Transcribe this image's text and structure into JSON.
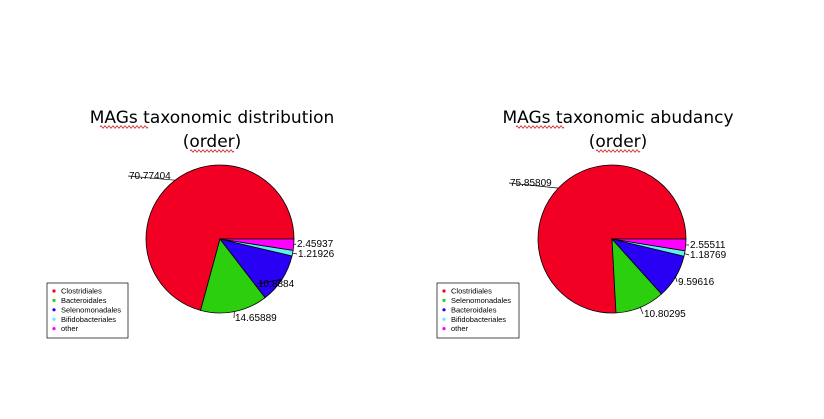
{
  "chart_data": [
    {
      "type": "pie",
      "title_line1": "MAGs taxonomic distribution",
      "title_line2": "(order)",
      "slices": [
        {
          "label": "Clostridiales",
          "value": 70.77404,
          "value_label": "70.77404",
          "color": "#f20024"
        },
        {
          "label": "Bacteroidales",
          "value": 14.65889,
          "value_label": "14.65889",
          "color": "#2ccf0e"
        },
        {
          "label": "Selenomonadales",
          "value": 10.8884,
          "value_label": "10.8884",
          "color": "#2a00f5"
        },
        {
          "label": "Bifidobacteriales",
          "value": 1.21926,
          "value_label": "1.21926",
          "color": "#5ef0f0"
        },
        {
          "label": "other",
          "value": 2.45937,
          "value_label": "2.45937",
          "color": "#ff00ff"
        }
      ],
      "legend": [
        "Clostridiales",
        "Bacteroidales",
        "Selenomonadales",
        "Bifidobacteriales",
        "other"
      ],
      "legend_placement": "bottom-left"
    },
    {
      "type": "pie",
      "title_line1": "MAGs taxonomic abudancy",
      "title_line2": "(order)",
      "slices": [
        {
          "label": "Clostridiales",
          "value": 75.85809,
          "value_label": "75.85809",
          "color": "#f20024"
        },
        {
          "label": "Selenomonadales",
          "value": 10.80295,
          "value_label": "10.80295",
          "color": "#2ccf0e"
        },
        {
          "label": "Bacteroidales",
          "value": 9.59616,
          "value_label": "9.59616",
          "color": "#2a00f5"
        },
        {
          "label": "Bifidobacteriales",
          "value": 1.18769,
          "value_label": "1.18769",
          "color": "#5ef0f0"
        },
        {
          "label": "other",
          "value": 2.55511,
          "value_label": "2.55511",
          "color": "#ff00ff"
        }
      ],
      "legend": [
        "Clostridiales",
        "Selenomonadales",
        "Bacteroidales",
        "Bifidobacteriales",
        "other"
      ],
      "legend_placement": "bottom-left"
    }
  ]
}
